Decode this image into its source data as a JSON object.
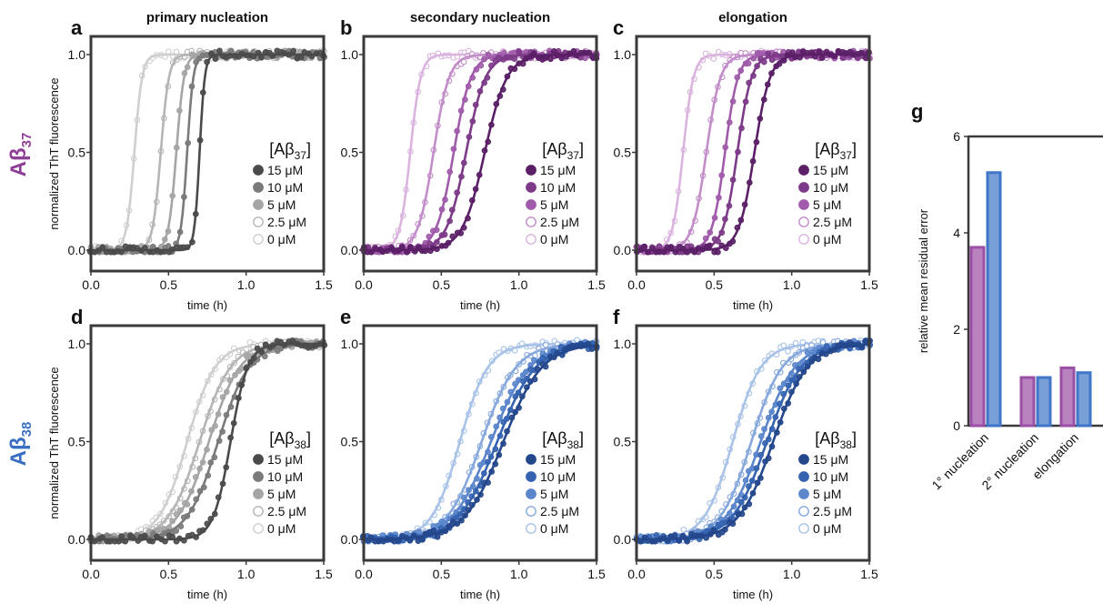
{
  "figure": {
    "row_labels": [
      {
        "base": "Aβ",
        "sub": "37",
        "color": "#8e3f97"
      },
      {
        "base": "Aβ",
        "sub": "38",
        "color": "#3a6fc4"
      }
    ],
    "column_titles": [
      "primary nucleation",
      "secondary nucleation",
      "elongation"
    ]
  },
  "chart_data": [
    {
      "panel": "a",
      "type": "scatter",
      "xlabel": "time (h)",
      "ylabel": "normalized ThT fluorescence",
      "xlim": [
        0,
        1.5
      ],
      "ylim": [
        0,
        1.0
      ],
      "xticks": [
        "0.0",
        "0.5",
        "1.0",
        "1.5"
      ],
      "yticks": [
        "0.0",
        "0.5",
        "1.0"
      ],
      "legend": {
        "title_base": "[Aβ",
        "title_sub": "37",
        "title_end": "]",
        "placement": "right"
      },
      "series": [
        {
          "name": "15 μM",
          "t_half": 0.7,
          "slope": 60,
          "color": "#4a4a4a",
          "filled": true
        },
        {
          "name": "10 μM",
          "t_half": 0.62,
          "slope": 50,
          "color": "#7a7a7a",
          "filled": true
        },
        {
          "name": "5 μM",
          "t_half": 0.55,
          "slope": 40,
          "color": "#a5a5a5",
          "filled": true
        },
        {
          "name": "2.5 μM",
          "t_half": 0.45,
          "slope": 38,
          "color": "#b5b5b5",
          "filled": false
        },
        {
          "name": "0 μM",
          "t_half": 0.28,
          "slope": 40,
          "color": "#cfcfcf",
          "filled": false
        }
      ]
    },
    {
      "panel": "b",
      "type": "scatter",
      "xlabel": "time (h)",
      "ylabel": "",
      "xlim": [
        0,
        1.5
      ],
      "ylim": [
        0,
        1.0
      ],
      "xticks": [
        "0.0",
        "0.5",
        "1.0",
        "1.5"
      ],
      "yticks": [
        "0.0",
        "0.5",
        "1.0"
      ],
      "legend": {
        "title_base": "[Aβ",
        "title_sub": "37",
        "title_end": "]",
        "placement": "right"
      },
      "series": [
        {
          "name": "15 μM",
          "t_half": 0.78,
          "slope": 14,
          "color": "#5a1f66",
          "filled": true
        },
        {
          "name": "10 μM",
          "t_half": 0.66,
          "slope": 16,
          "color": "#7d3a88",
          "filled": true
        },
        {
          "name": "5 μM",
          "t_half": 0.58,
          "slope": 18,
          "color": "#a05caa",
          "filled": true
        },
        {
          "name": "2.5 μM",
          "t_half": 0.45,
          "slope": 20,
          "color": "#c28dc8",
          "filled": false
        },
        {
          "name": "0 μM",
          "t_half": 0.3,
          "slope": 30,
          "color": "#dab4de",
          "filled": false
        }
      ]
    },
    {
      "panel": "c",
      "type": "scatter",
      "xlabel": "time (h)",
      "ylabel": "",
      "xlim": [
        0,
        1.5
      ],
      "ylim": [
        0,
        1.0
      ],
      "xticks": [
        "0.0",
        "0.5",
        "1.0",
        "1.5"
      ],
      "yticks": [
        "0.0",
        "0.5",
        "1.0"
      ],
      "legend": {
        "title_base": "[Aβ",
        "title_sub": "37",
        "title_end": "]",
        "placement": "right"
      },
      "series": [
        {
          "name": "15 μM",
          "t_half": 0.76,
          "slope": 20,
          "color": "#5a1f66",
          "filled": true
        },
        {
          "name": "10 μM",
          "t_half": 0.65,
          "slope": 22,
          "color": "#7d3a88",
          "filled": true
        },
        {
          "name": "5 μM",
          "t_half": 0.57,
          "slope": 24,
          "color": "#a05caa",
          "filled": true
        },
        {
          "name": "2.5 μM",
          "t_half": 0.45,
          "slope": 22,
          "color": "#c28dc8",
          "filled": false
        },
        {
          "name": "0 μM",
          "t_half": 0.3,
          "slope": 30,
          "color": "#dab4de",
          "filled": false
        }
      ]
    },
    {
      "panel": "d",
      "type": "scatter",
      "xlabel": "time (h)",
      "ylabel": "normalized ThT fluorescence",
      "xlim": [
        0,
        1.5
      ],
      "ylim": [
        0,
        1.0
      ],
      "xticks": [
        "0.0",
        "0.5",
        "1.0",
        "1.5"
      ],
      "yticks": [
        "0.0",
        "0.5",
        "1.0"
      ],
      "legend": {
        "title_base": "[Aβ",
        "title_sub": "38",
        "title_end": "]",
        "placement": "right"
      },
      "series": [
        {
          "name": "15 μM",
          "t_half": 0.9,
          "slope": 18,
          "color": "#4a4a4a",
          "filled": true
        },
        {
          "name": "10 μM",
          "t_half": 0.82,
          "slope": 10,
          "color": "#7a7a7a",
          "filled": true
        },
        {
          "name": "5 μM",
          "t_half": 0.76,
          "slope": 10,
          "color": "#a5a5a5",
          "filled": true
        },
        {
          "name": "2.5 μM",
          "t_half": 0.7,
          "slope": 10,
          "color": "#b5b5b5",
          "filled": false
        },
        {
          "name": "0 μM",
          "t_half": 0.62,
          "slope": 11,
          "color": "#cfcfcf",
          "filled": false
        }
      ]
    },
    {
      "panel": "e",
      "type": "scatter",
      "xlabel": "time (h)",
      "ylabel": "",
      "xlim": [
        0,
        1.5
      ],
      "ylim": [
        0,
        1.0
      ],
      "xticks": [
        "0.0",
        "0.5",
        "1.0",
        "1.5"
      ],
      "yticks": [
        "0.0",
        "0.5",
        "1.0"
      ],
      "legend": {
        "title_base": "[Aβ",
        "title_sub": "38",
        "title_end": "]",
        "placement": "right"
      },
      "series": [
        {
          "name": "15 μM",
          "t_half": 0.9,
          "slope": 8,
          "color": "#24478c",
          "filled": true
        },
        {
          "name": "10 μM",
          "t_half": 0.86,
          "slope": 8,
          "color": "#3563b0",
          "filled": true
        },
        {
          "name": "5 μM",
          "t_half": 0.82,
          "slope": 8,
          "color": "#5b86cc",
          "filled": true
        },
        {
          "name": "2.5 μM",
          "t_half": 0.76,
          "slope": 9,
          "color": "#86a8dc",
          "filled": false
        },
        {
          "name": "0 μM",
          "t_half": 0.62,
          "slope": 11,
          "color": "#a9c3e8",
          "filled": false
        }
      ]
    },
    {
      "panel": "f",
      "type": "scatter",
      "xlabel": "time (h)",
      "ylabel": "",
      "xlim": [
        0,
        1.5
      ],
      "ylim": [
        0,
        1.0
      ],
      "xticks": [
        "0.0",
        "0.5",
        "1.0",
        "1.5"
      ],
      "yticks": [
        "0.0",
        "0.5",
        "1.0"
      ],
      "legend": {
        "title_base": "[Aβ",
        "title_sub": "38",
        "title_end": "]",
        "placement": "right"
      },
      "series": [
        {
          "name": "15 μM",
          "t_half": 0.88,
          "slope": 9,
          "color": "#24478c",
          "filled": true
        },
        {
          "name": "10 μM",
          "t_half": 0.84,
          "slope": 9,
          "color": "#3563b0",
          "filled": true
        },
        {
          "name": "5 μM",
          "t_half": 0.8,
          "slope": 9,
          "color": "#5b86cc",
          "filled": true
        },
        {
          "name": "2.5 μM",
          "t_half": 0.74,
          "slope": 10,
          "color": "#86a8dc",
          "filled": false
        },
        {
          "name": "0 μM",
          "t_half": 0.62,
          "slope": 11,
          "color": "#a9c3e8",
          "filled": false
        }
      ]
    },
    {
      "panel": "g",
      "type": "bar",
      "ylabel": "relative mean residual error",
      "ylim": [
        0,
        6
      ],
      "yticks": [
        "0",
        "2",
        "4",
        "6"
      ],
      "categories": [
        "1° nucleation",
        "2° nucleation",
        "elongation"
      ],
      "series": [
        {
          "color": "#9b4fa5",
          "values": [
            3.7,
            1.0,
            1.2
          ]
        },
        {
          "color": "#3f76c8",
          "values": [
            5.25,
            1.0,
            1.1
          ]
        }
      ]
    }
  ]
}
